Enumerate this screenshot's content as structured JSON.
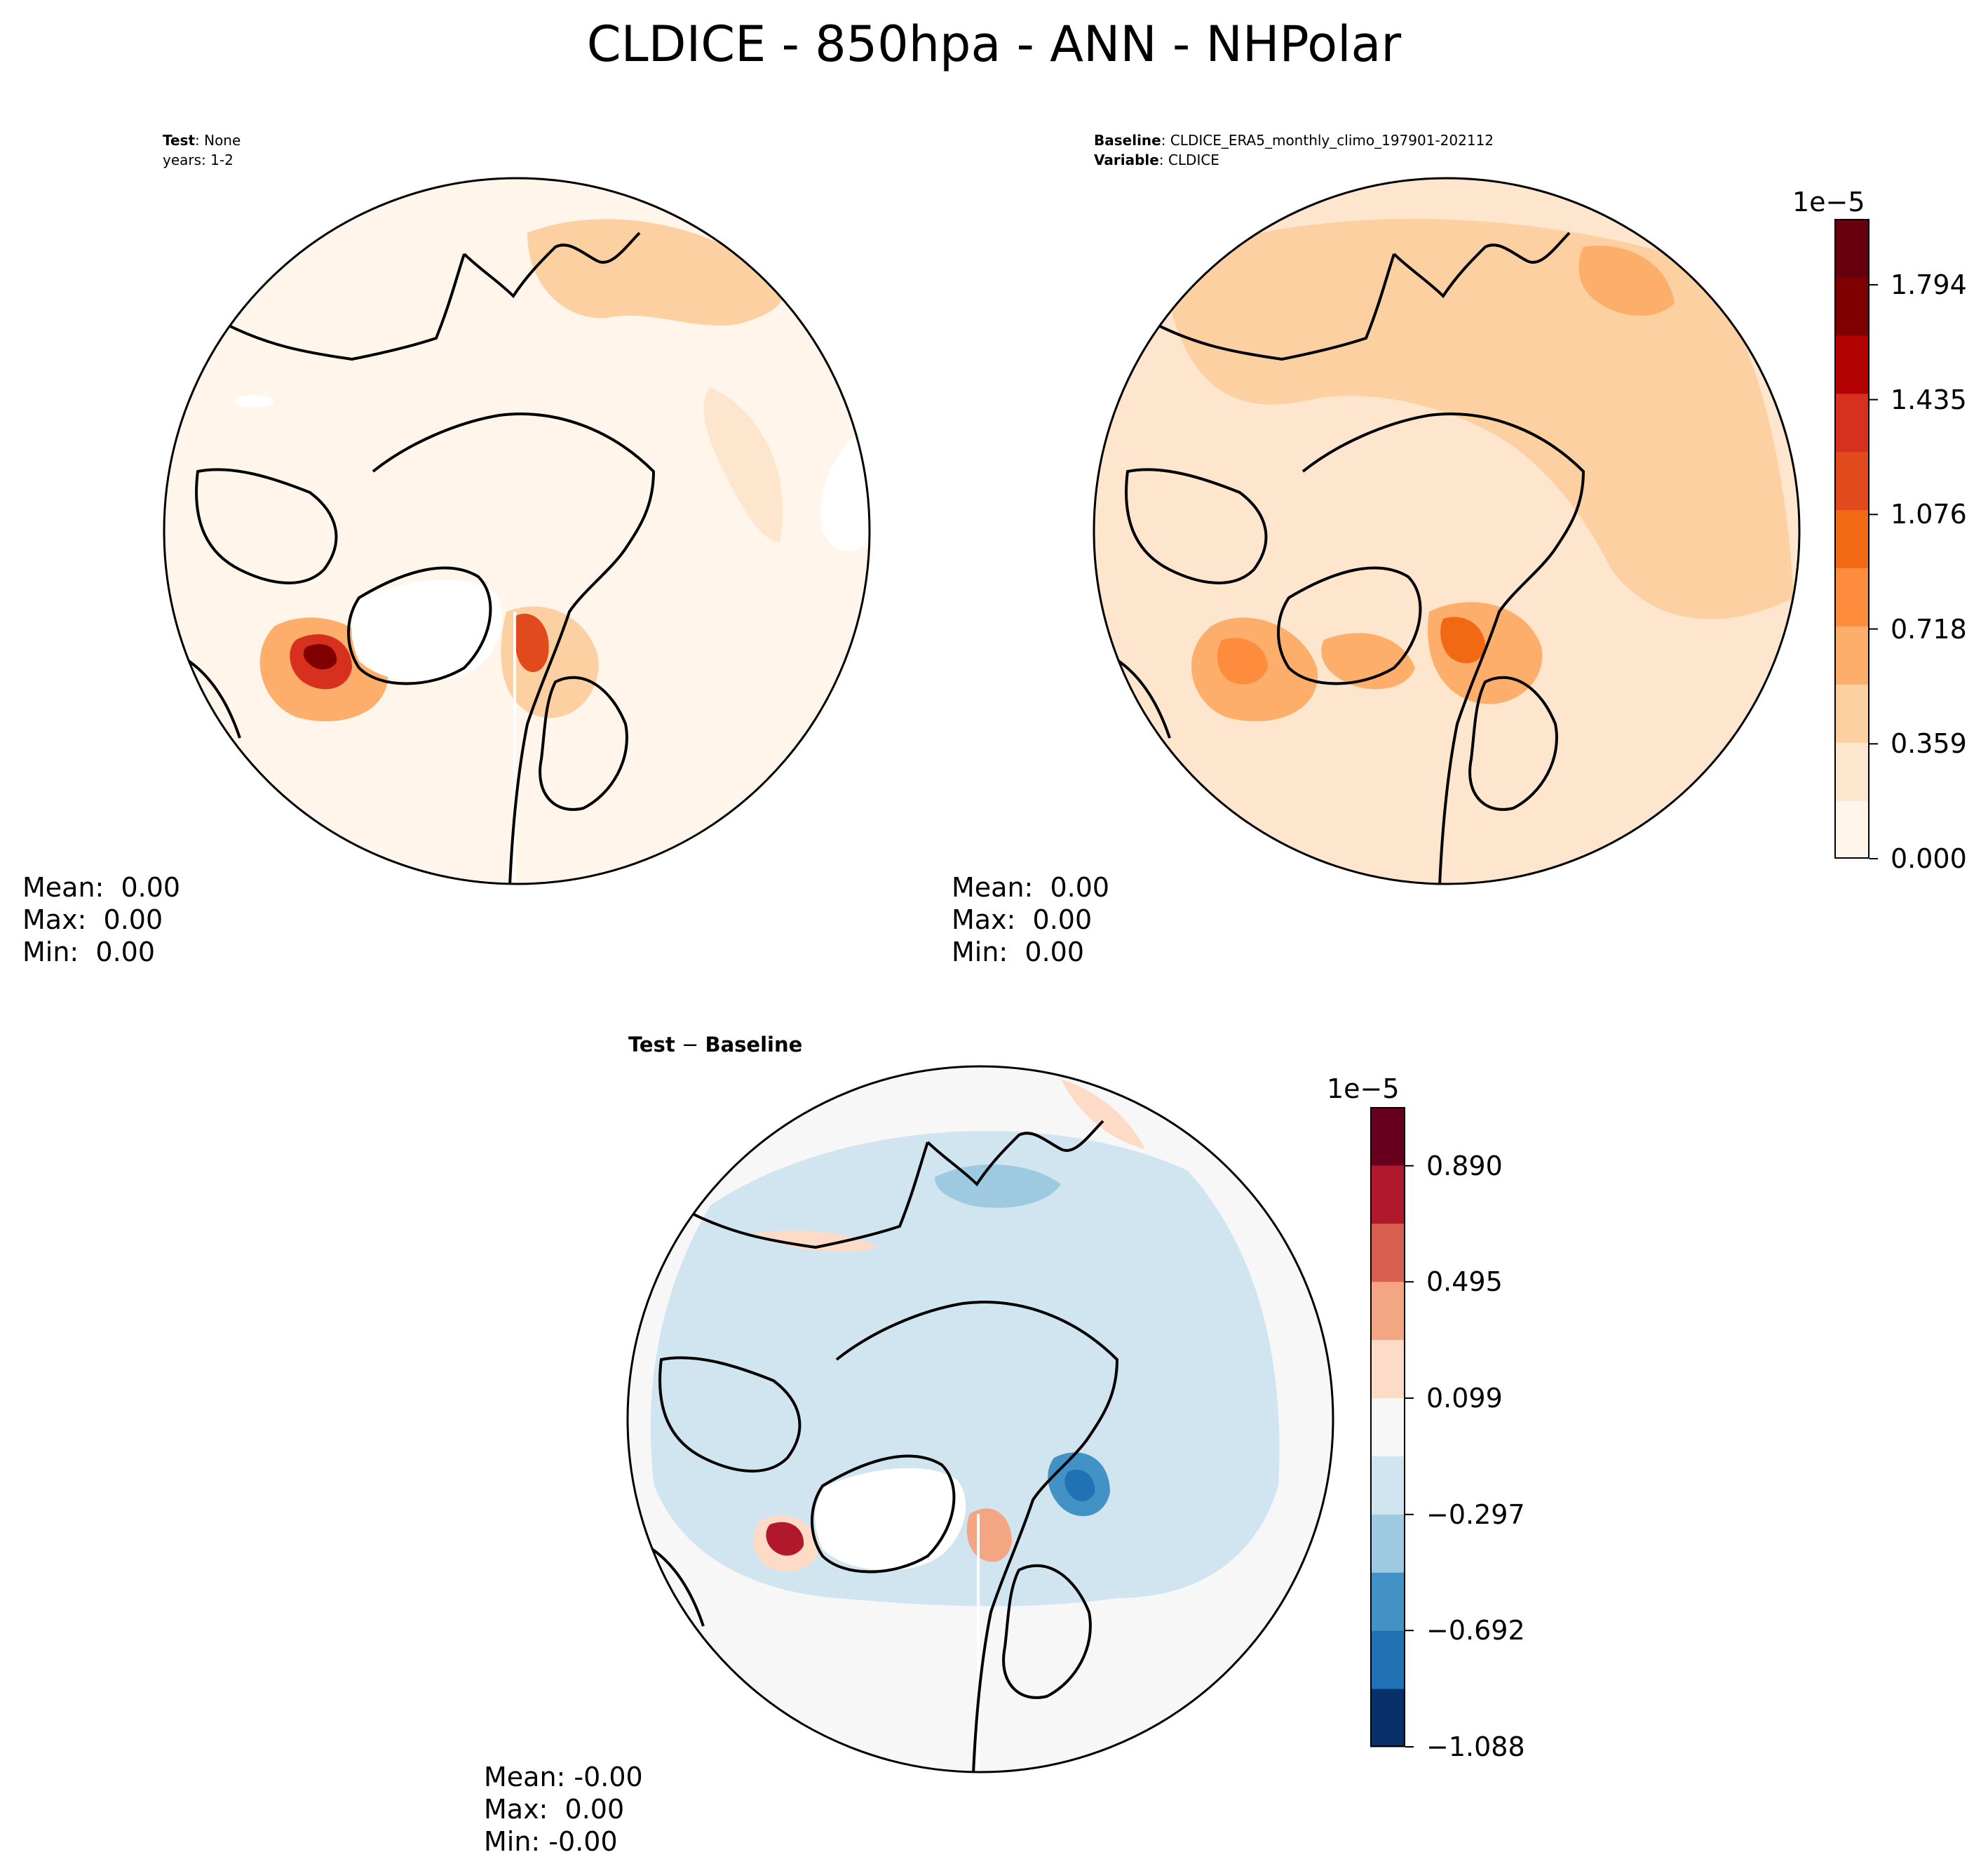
{
  "title": "CLDICE - 850hpa - ANN - NHPolar",
  "colors": {
    "seq": [
      "#fff5eb",
      "#fee6ce",
      "#fdd0a2",
      "#fdae6b",
      "#fd8d3c",
      "#f16913",
      "#e04a1c",
      "#d7301f",
      "#b30000",
      "#7f0000",
      "#67000d"
    ],
    "div": [
      "#08306b",
      "#2171b5",
      "#4292c6",
      "#9ecae1",
      "#d1e5f0",
      "#f7f7f7",
      "#fddbc7",
      "#f4a582",
      "#d6604d",
      "#b2182b",
      "#67001f"
    ],
    "land_outline": "#000000",
    "missing": "#ffffff"
  },
  "test_panel": {
    "label_bold": "Test",
    "label_value": ": None",
    "years": "years: 1-2",
    "stats": {
      "mean": "Mean:  0.00",
      "max": "Max:  0.00",
      "min": "Min:  0.00"
    }
  },
  "baseline_panel": {
    "label_bold": "Baseline",
    "label_value": ": CLDICE_ERA5_monthly_climo_197901-202112",
    "variable_bold": "Variable",
    "variable_value": ": CLDICE",
    "stats": {
      "mean": "Mean:  0.00",
      "max": "Max:  0.00",
      "min": "Min:  0.00"
    }
  },
  "diff_panel": {
    "title_bold_1": "Test",
    "title_op": " − ",
    "title_bold_2": "Baseline",
    "stats": {
      "mean": "Mean: -0.00",
      "max": "Max:  0.00",
      "min": "Min: -0.00"
    }
  },
  "chart_data": [
    {
      "type": "heatmap",
      "name": "test",
      "projection": "north-polar-stereographic",
      "colormap": "sequential-orange-red",
      "colorbar": "shared-with-baseline"
    },
    {
      "type": "heatmap",
      "name": "baseline",
      "projection": "north-polar-stereographic",
      "colormap": "sequential-orange-red",
      "colorbar": {
        "scale_label": "1e−5",
        "range": [
          0.0,
          2.0
        ],
        "levels": 11,
        "ticks": [
          0.0,
          0.359,
          0.718,
          1.076,
          1.435,
          1.794
        ],
        "tick_labels": [
          "0.000",
          "0.359",
          "0.718",
          "1.076",
          "1.435",
          "1.794"
        ]
      }
    },
    {
      "type": "heatmap",
      "name": "test_minus_baseline",
      "projection": "north-polar-stereographic",
      "colormap": "diverging-blue-red",
      "colorbar": {
        "scale_label": "1e−5",
        "range": [
          -1.088,
          1.09
        ],
        "levels": 11,
        "ticks": [
          -1.088,
          -0.692,
          -0.297,
          0.099,
          0.495,
          0.89
        ],
        "tick_labels": [
          "−1.088",
          "−0.692",
          "−0.297",
          "0.099",
          "0.495",
          "0.890"
        ]
      }
    }
  ]
}
